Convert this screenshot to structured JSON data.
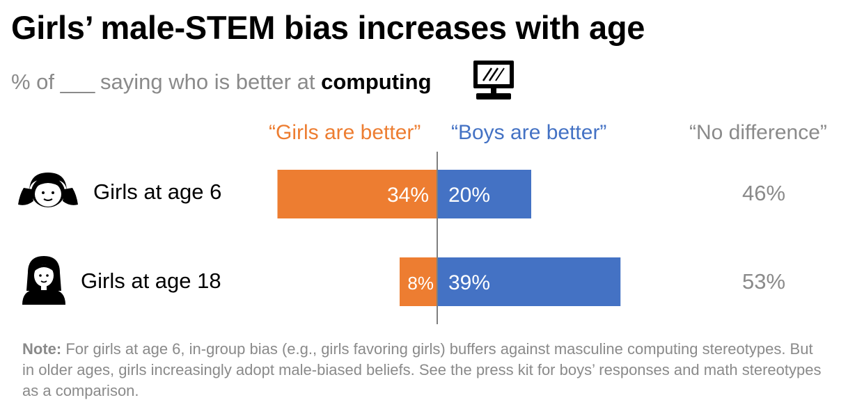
{
  "title": "Girls’ male-STEM bias increases with age",
  "subtitle": {
    "prefix": "% of",
    "blank": "___",
    "middle": "saying who is better at",
    "emphasis": "computing",
    "icon": "computer-icon"
  },
  "colors": {
    "girls": "#ED7D31",
    "boys": "#4472C4",
    "nodiff": "#8A8A8A",
    "axis": "#7F7F7F"
  },
  "chart_data": {
    "type": "bar",
    "orientation": "horizontal-diverging",
    "categories": [
      "Girls at age 6",
      "Girls at age 18"
    ],
    "category_icons": [
      "girl-child-icon",
      "young-woman-icon"
    ],
    "series": [
      {
        "name": "“Girls are better”",
        "values": [
          34,
          8
        ],
        "labels": [
          "34%",
          "8%"
        ],
        "direction": "left"
      },
      {
        "name": "“Boys are better”",
        "values": [
          20,
          39
        ],
        "labels": [
          "20%",
          "39%"
        ],
        "direction": "right"
      },
      {
        "name": "“No difference”",
        "values": [
          46,
          53
        ],
        "labels": [
          "46%",
          "53%"
        ],
        "shown_as": "text"
      }
    ],
    "unit": "%"
  },
  "note": {
    "label": "Note:",
    "text": "For girls at age 6, in-group bias (e.g., girls favoring girls) buffers against masculine computing stereotypes. But in older ages, girls increasingly adopt male-biased beliefs. See the press kit for boys’ responses and math stereotypes as a comparison."
  }
}
